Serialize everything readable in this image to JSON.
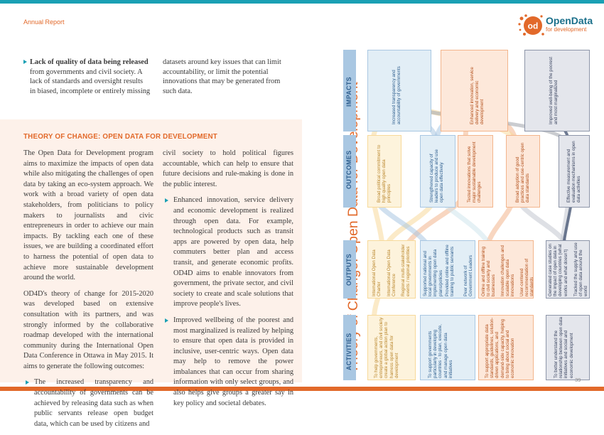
{
  "header": {
    "running_title": "Annual Report",
    "logo_mark": "od",
    "logo_name": "OpenData",
    "logo_sub": "for development"
  },
  "top": {
    "bullet_heading": "Lack of quality of data being released",
    "bullet_lines": [
      "from governments and civil society. A",
      "lack of standards and oversight results",
      "in biased, incomplete or entirely missing"
    ],
    "right_lines": [
      "datasets around key issues that can limit",
      "accountability, or limit the potential",
      "innovations that may be generated from",
      "such data."
    ]
  },
  "section": {
    "title": "THEORY OF CHANGE: OPEN DATA FOR DEVELOPMENT",
    "col1_p1": "The Open Data for Development program aims to maximize the impacts of open data while also mitigating the challenges of open data by taking an eco-system approach. We work with a broad variety of open data stakeholders, from politicians to policy makers to journalists and civic entrepreneurs in order to achieve our main impacts. By tackling each one of these issues, we are building a coordinated effort to harness the potential of open data to achieve more sustainable development around the world.",
    "col1_p2": "OD4D's theory of change for 2015-2020 was developed based on extensive consultation with its partners, and was strongly informed by the collaborative roadmap developed with the international community during the International Open Data Conference in Ottawa in May 2015. It aims to generate the following outcomes:",
    "col1_li1": "The increased transparency and accountability of governments can be achieved by releasing data such as when public servants release open budget data, which can be used by citizens and",
    "col2_p1": "civil society to hold political figures accountable, which can help to ensure that future decisions and rule-making is done in the public interest.",
    "col2_li1": "Enhanced innovation, service delivery and economic development is realized through open data. For example, technological products such as transit apps are powered by open data, help commuters better plan and access transit, and generate economic profits. OD4D aims to enable innovators from government, the private sector, and civil society to create and scale solutions that improve people's lives.",
    "col2_li2": "Improved wellbeing of the poorest and most marginalized is realized by helping to ensure that open data is provided in inclusive, user-centric ways. Open data may help to remove the power imbalances that can occur from sharing information with only select groups, and also helps give groups a greater say in key policy and societal debates."
  },
  "diagram": {
    "title": "Theory of Change: Open Data for Development",
    "stages": [
      "IMPACTS",
      "OUTCOMES",
      "OUTPUTS",
      "ACTIVITIES"
    ],
    "impacts": [
      "Increased transparency and accountability of governments",
      "Enhanced innovation, service delivery and economic development",
      "Improved well-being of the poorest and most marginalized"
    ],
    "outcomes": [
      "Broad political commitment to high quality open data principles",
      "Strengthened capacity of leaders to produce and use open data effectively",
      "Tested innovations that solve major sustainable development challenges",
      "Broad adoption of good practices and use-centric open data standards",
      "Effective measurement and evaluation mechanisms in open data activities"
    ],
    "outputs": [
      "International Open Data Charter",
      "International Open Data Conference",
      "Regional multi-stakeholder events / regional priorities",
      "Supported national and local governments in implementing open data plans/policies",
      "Provided online and offline training to public servants",
      "Peer network of Government Leaders",
      "Online and offline training to civil society and businesses",
      "Innovation challenges and scalable open data innovations",
      "User-centered recommendation of standards",
      "Generated case studies on the impact of open data in developing countries (what works and what doesn't)",
      "Tracked the supply and use of open data around the world"
    ],
    "activities": [
      "To help governments, entrepreneurs, and civil society create a global action plan to harness open data for development",
      "To support governments particularly in developing countries - to plan, execute, and manage open data initiatives",
      "To support appropriate data standards, guidelines, solution-driven applications, and demand-side capacity, helping to bring about social and economic innovation",
      "To better understand the relationship between open data initiatives and social and economic development"
    ],
    "colors": {
      "yellow": "#f7d99a",
      "blue": "#a9c7e2",
      "teal": "#cfe6ec",
      "orange": "#f3b58c",
      "navy": "#54627e",
      "grey": "#c2c7d0"
    }
  },
  "page_number": "39"
}
